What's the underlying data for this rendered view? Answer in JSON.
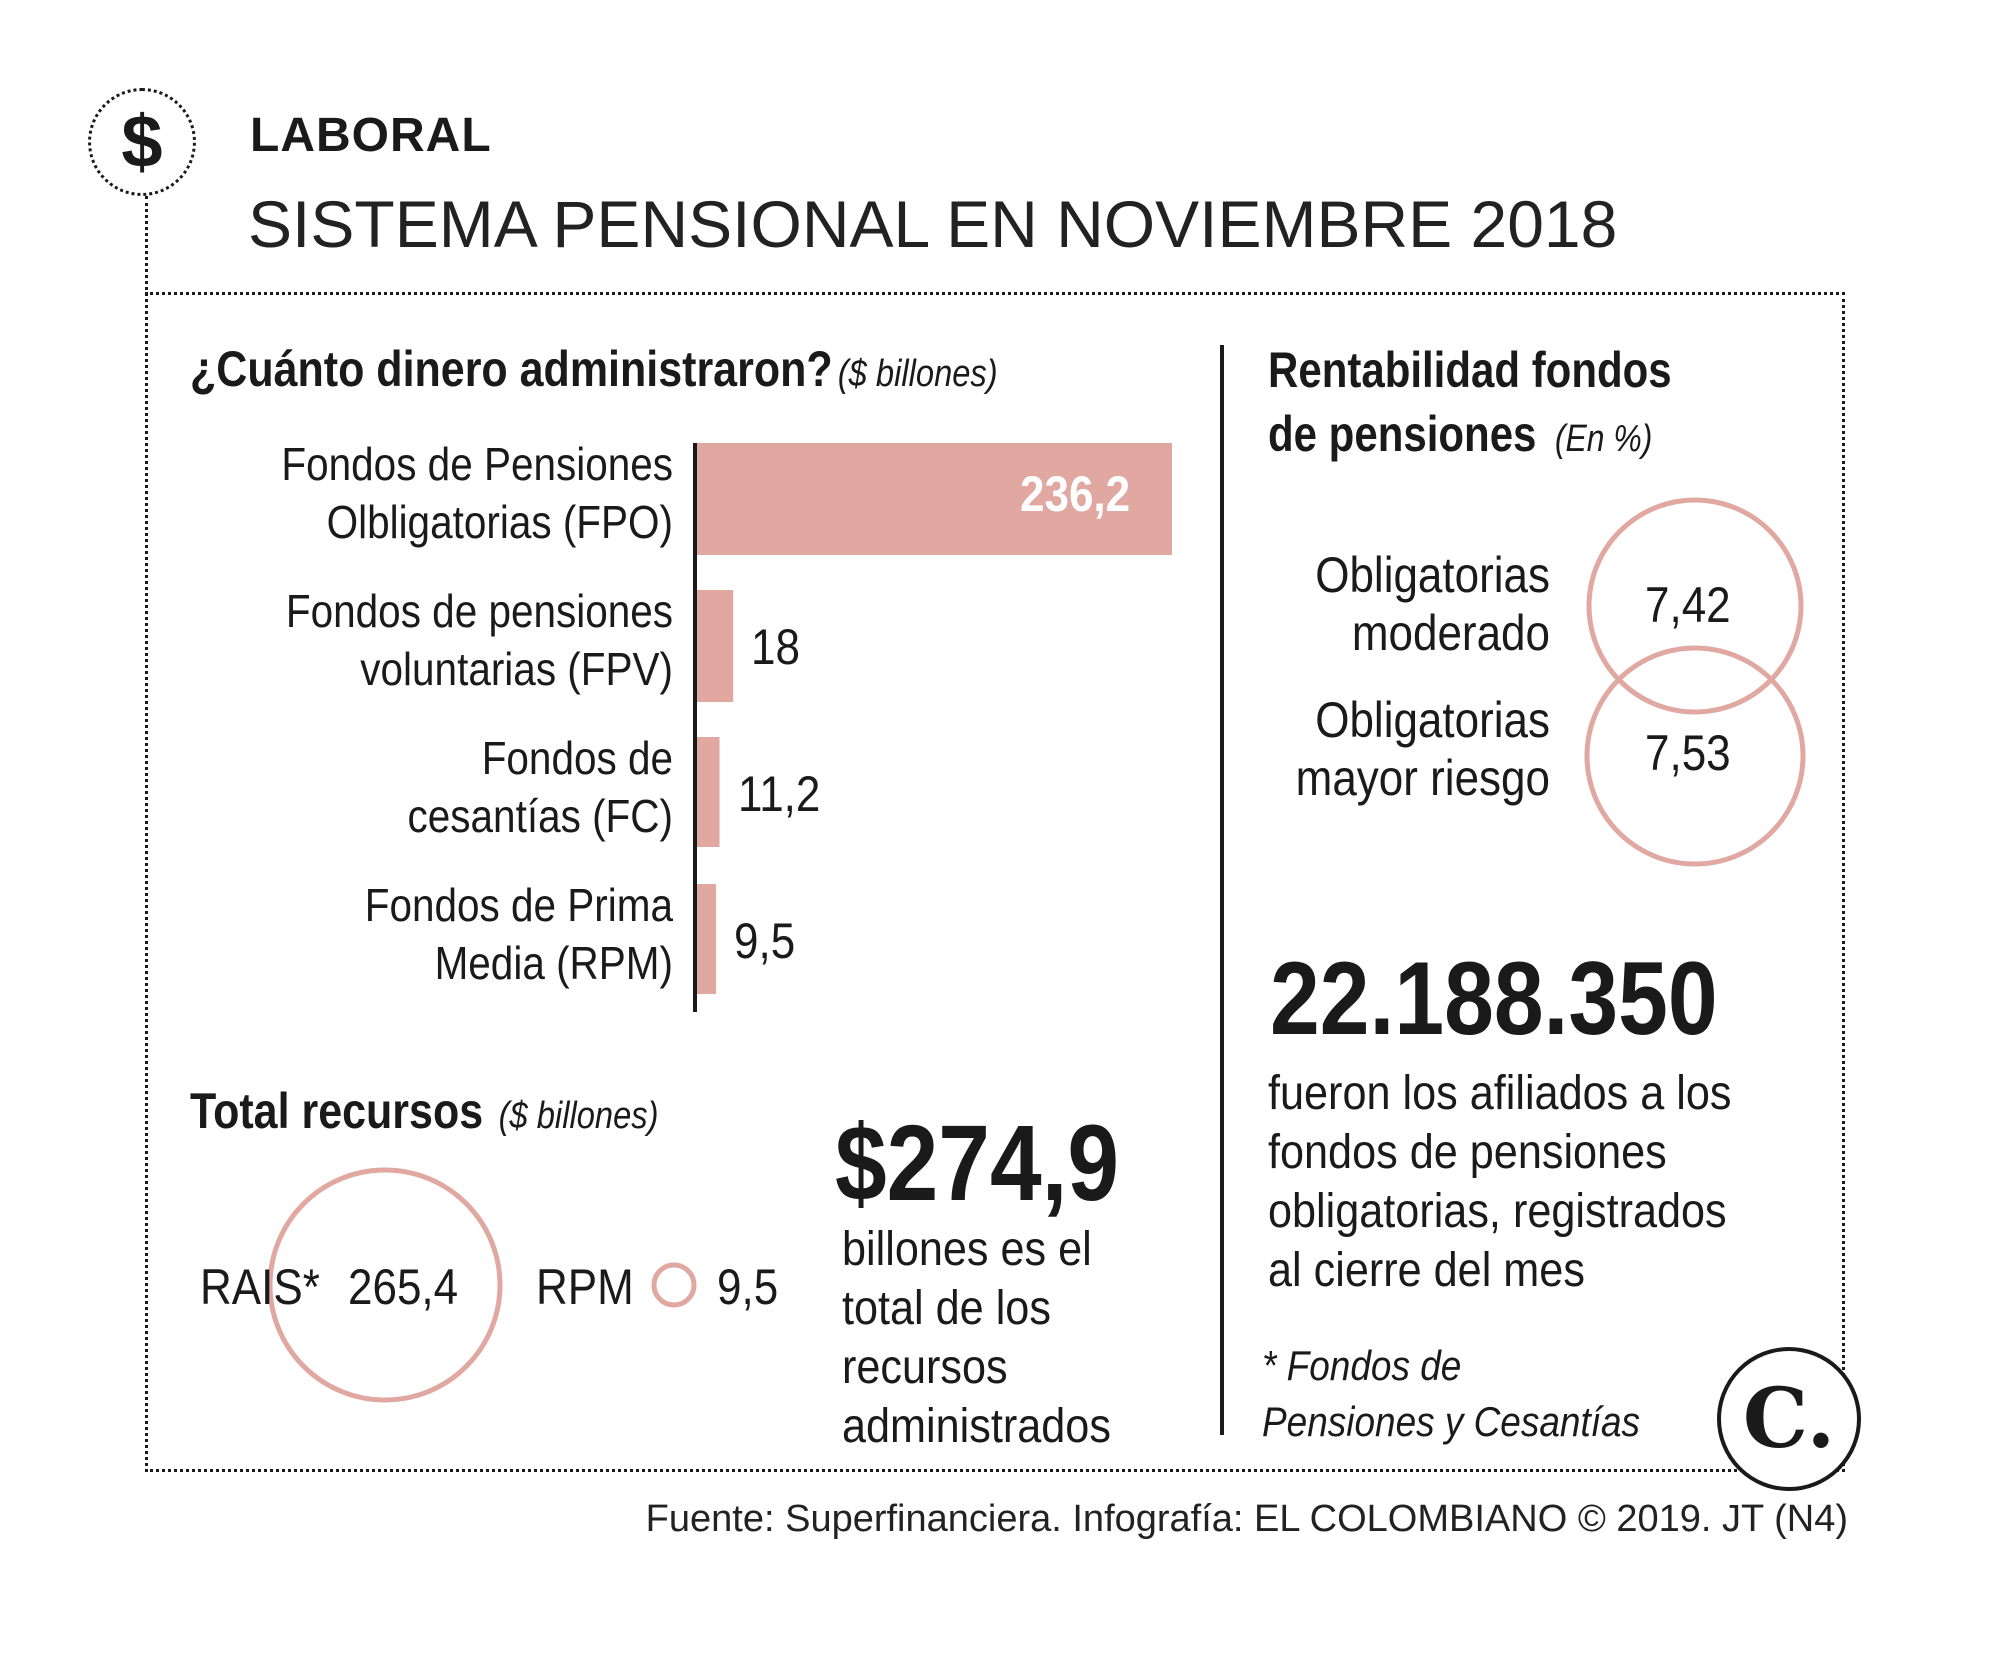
{
  "header": {
    "badge_symbol": "$",
    "section_label": "LABORAL",
    "title": "SISTEMA PENSIONAL EN NOVIEMBRE 2018"
  },
  "colors": {
    "accent": "#e0a8a0",
    "text": "#1a1a1a"
  },
  "managed": {
    "heading": "¿Cuánto dinero administraron?",
    "unit": "($ billones)"
  },
  "chart_data": [
    {
      "type": "bar",
      "orientation": "horizontal",
      "title": "¿Cuánto dinero administraron?",
      "unit": "($ billones)",
      "categories": [
        [
          "Fondos de Pensiones",
          "Olbligatorias (FPO)"
        ],
        [
          "Fondos de pensiones",
          "voluntarias (FPV)"
        ],
        [
          "Fondos de",
          "cesantías (FC)"
        ],
        [
          "Fondos de Prima",
          "Media (RPM)"
        ]
      ],
      "values": [
        236.2,
        18,
        11.2,
        9.5
      ],
      "value_labels": [
        "236,2",
        "18",
        "11,2",
        "9,5"
      ],
      "xlim": [
        0,
        236.2
      ]
    },
    {
      "type": "bubble",
      "title": "Total recursos",
      "unit": "($ billones)",
      "categories": [
        "RAIS*",
        "RPM"
      ],
      "values": [
        265.4,
        9.5
      ],
      "value_labels": [
        "265,4",
        "9,5"
      ]
    },
    {
      "type": "bubble",
      "title": "Rentabilidad fondos de pensiones",
      "unit": "(En %)",
      "categories": [
        [
          "Obligatorias",
          "moderado"
        ],
        [
          "Obligatorias",
          "mayor riesgo"
        ]
      ],
      "values": [
        7.42,
        7.53
      ],
      "value_labels": [
        "7,42",
        "7,53"
      ]
    }
  ],
  "total": {
    "heading": "Total recursos",
    "unit": "($ billones)",
    "big_amount": "$274,9",
    "text_lines": [
      "billones es el",
      "total de los",
      "recursos",
      "administrados"
    ]
  },
  "profitability": {
    "heading_lines": [
      "Rentabilidad fondos",
      "de pensiones"
    ],
    "unit": "(En %)"
  },
  "affiliates": {
    "big_count": "22.188.350",
    "text_lines": [
      "fueron los afiliados a los",
      "fondos de pensiones",
      "obligatorias, registrados",
      "al cierre del mes"
    ]
  },
  "footnote_lines": [
    "* Fondos de",
    "Pensiones y Cesantías"
  ],
  "logo_text": "C.",
  "source": "Fuente: Superfinanciera. Infografía: EL COLOMBIANO © 2019. JT (N4)"
}
